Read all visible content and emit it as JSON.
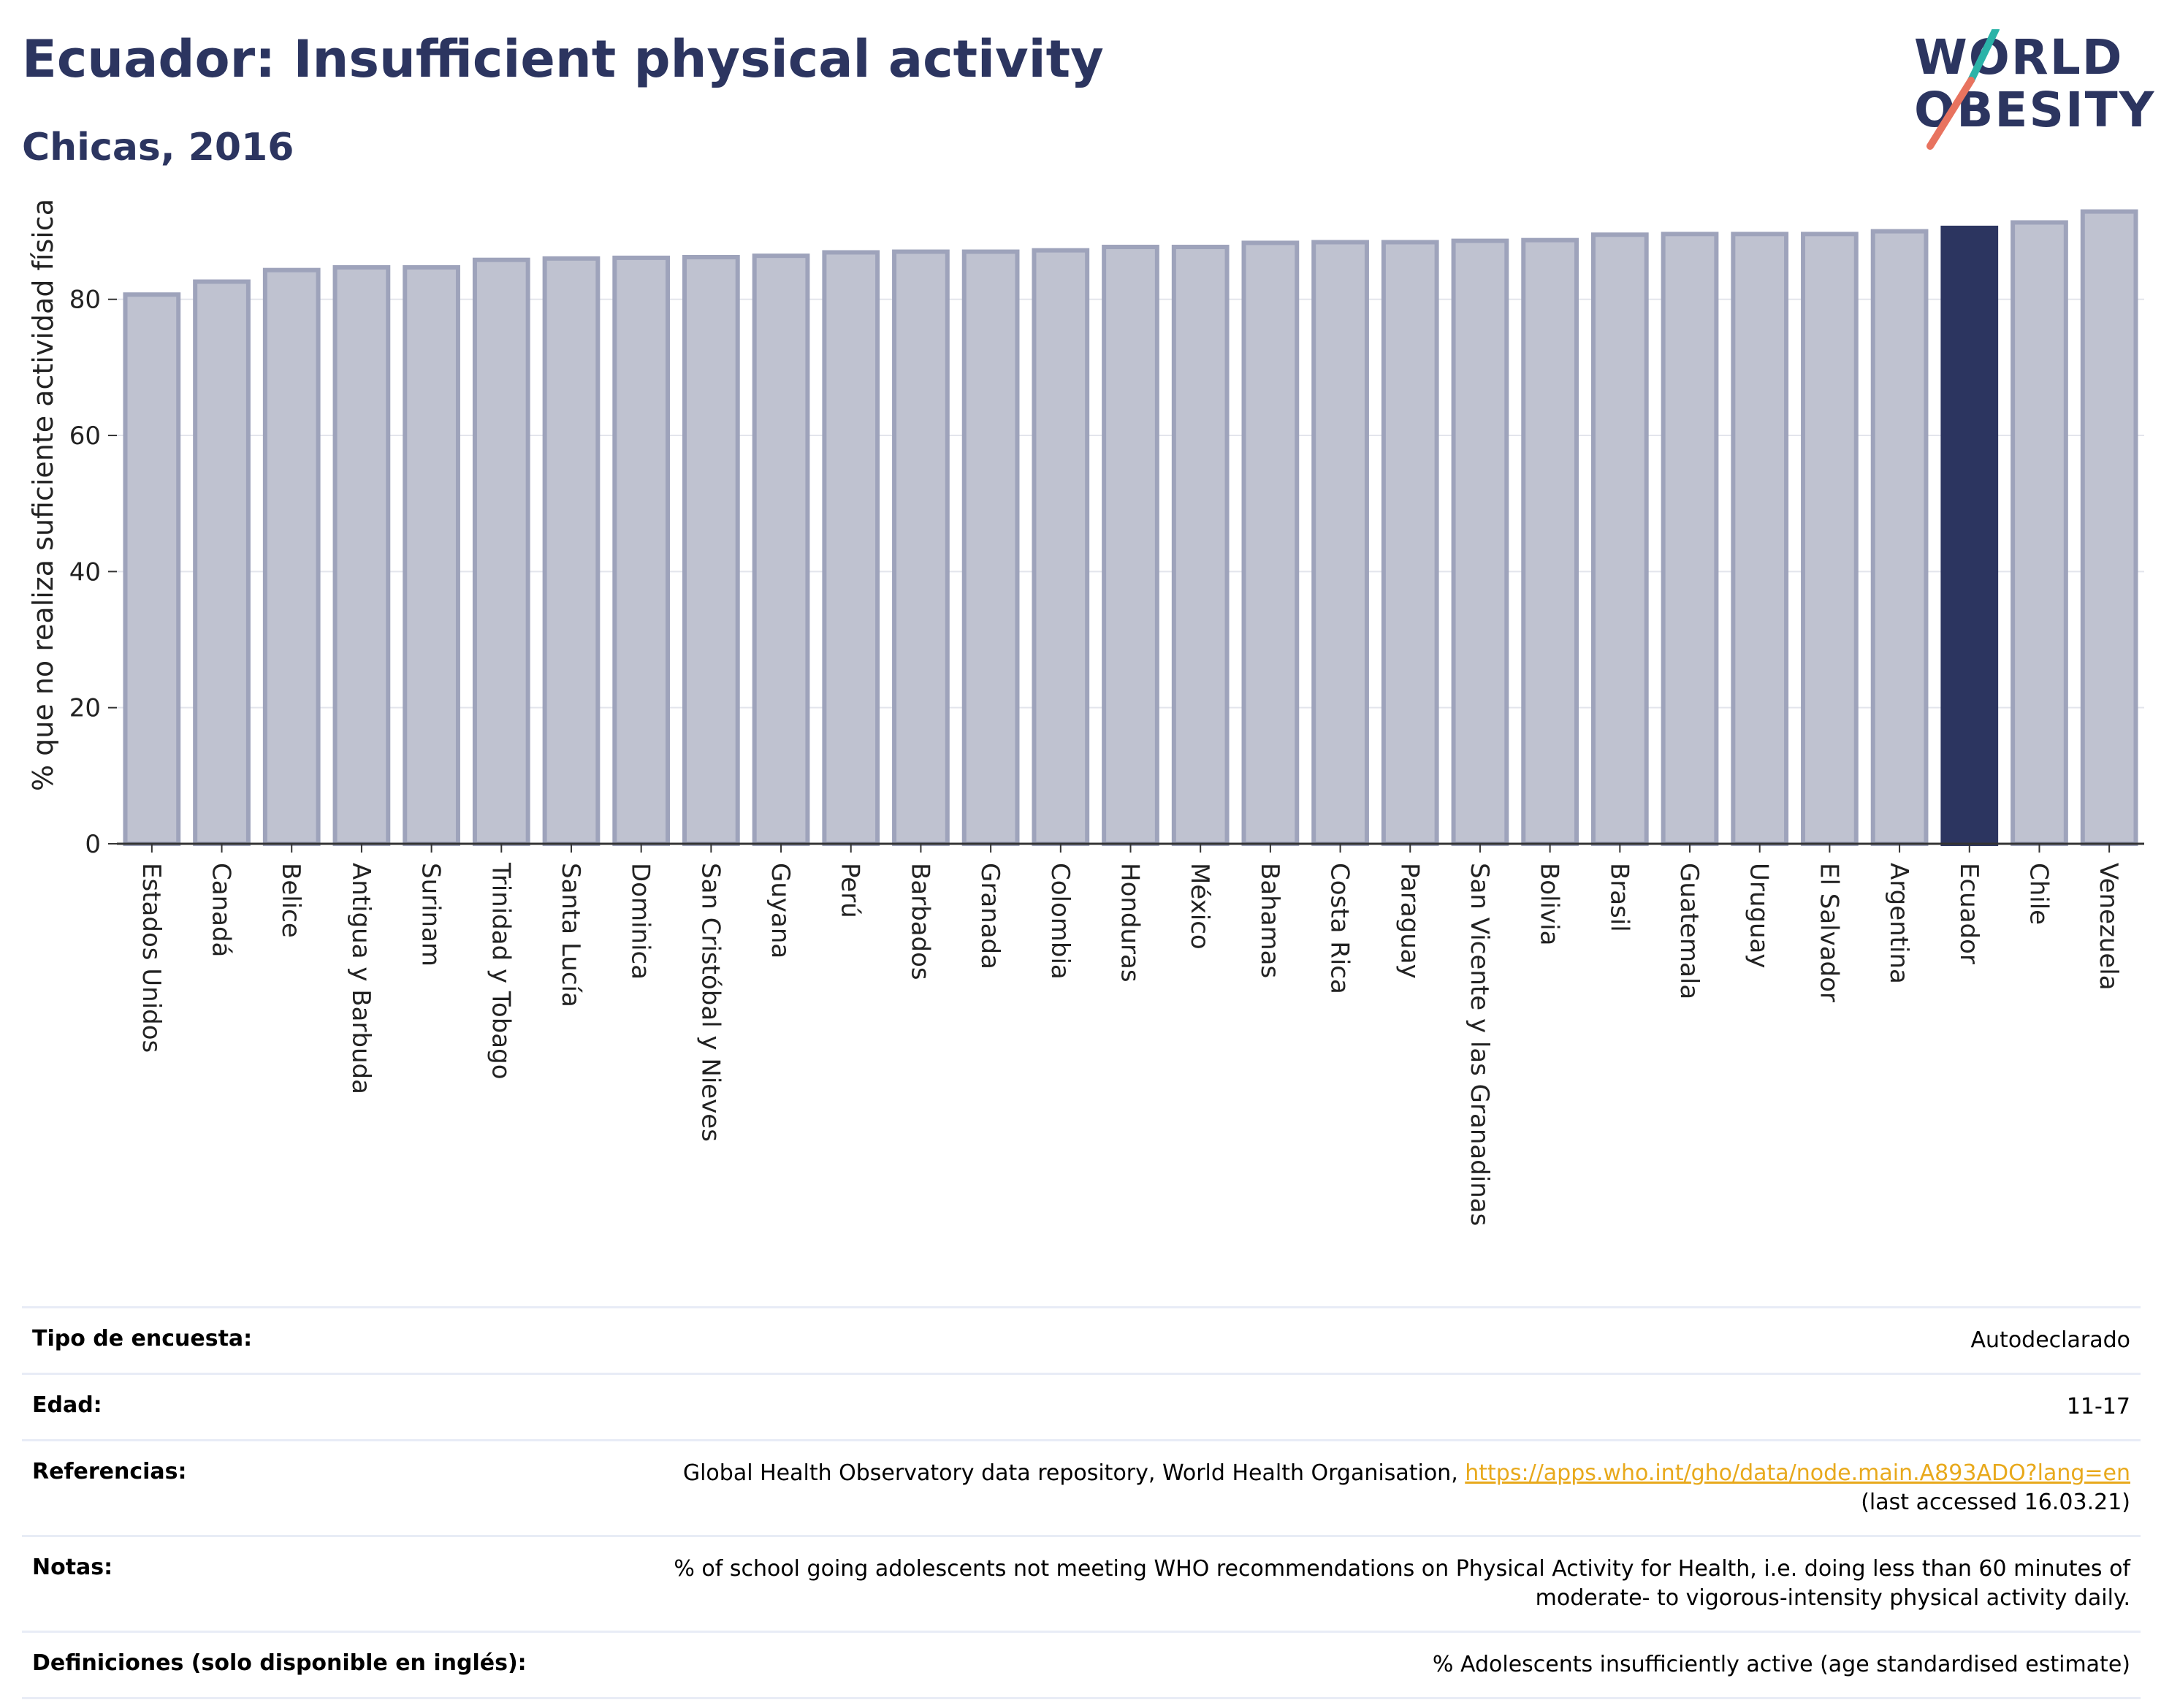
{
  "header": {
    "title": "Ecuador: Insufficient physical activity",
    "subtitle": "Chicas, 2016"
  },
  "logo": {
    "line1": "WORLD",
    "line2": "OBESITY",
    "text_color": "#2c3560",
    "slash_top_color": "#2bb3a8",
    "slash_bottom_color": "#e8735f"
  },
  "colors": {
    "bar_default": "#bfc2d0",
    "bar_border": "#9ea3bb",
    "bar_highlight": "#2c3560",
    "title": "#2c3560",
    "link": "#e8a91c"
  },
  "chart_data": {
    "type": "bar",
    "ylabel": "% que no realiza suficiente actividad física",
    "xlabel": "",
    "ylim": [
      0,
      95
    ],
    "yticks": [
      0,
      20,
      40,
      60,
      80
    ],
    "grid": true,
    "highlight": "Ecuador",
    "categories": [
      "Estados Unidos",
      "Canadá",
      "Belice",
      "Antigua y Barbuda",
      "Surinam",
      "Trinidad y Tobago",
      "Santa Lucía",
      "Dominica",
      "San Cristóbal y Nieves",
      "Guyana",
      "Perú",
      "Barbados",
      "Granada",
      "Colombia",
      "Honduras",
      "México",
      "Bahamas",
      "Costa Rica",
      "Paraguay",
      "San Vicente y las Granadinas",
      "Bolivia",
      "Brasil",
      "Guatemala",
      "Uruguay",
      "El Salvador",
      "Argentina",
      "Ecuador",
      "Chile",
      "Venezuela"
    ],
    "values": [
      80.7,
      82.6,
      84.3,
      84.7,
      84.7,
      85.8,
      86.0,
      86.1,
      86.2,
      86.4,
      86.9,
      87.0,
      87.0,
      87.2,
      87.7,
      87.7,
      88.3,
      88.4,
      88.4,
      88.6,
      88.7,
      89.5,
      89.6,
      89.6,
      89.6,
      90.0,
      90.5,
      91.3,
      92.9
    ]
  },
  "meta": [
    {
      "key": "Tipo de encuesta:",
      "value": "Autodeclarado"
    },
    {
      "key": "Edad:",
      "value": "11-17"
    },
    {
      "key": "Referencias:",
      "value": "Global Health Observatory data repository, World Health Organisation, ",
      "link": "https://apps.who.int/gho/data/node.main.A893ADO?lang=en",
      "value2": "(last accessed 16.03.21)"
    },
    {
      "key": "Notas:",
      "value": "% of school going adolescents not meeting WHO recommendations on Physical Activity for Health, i.e. doing less than 60 minutes of",
      "value2": "moderate- to vigorous-intensity physical activity daily."
    },
    {
      "key": "Definiciones (solo disponible en inglés):",
      "value": "% Adolescents insufficiently active (age standardised estimate)"
    }
  ]
}
